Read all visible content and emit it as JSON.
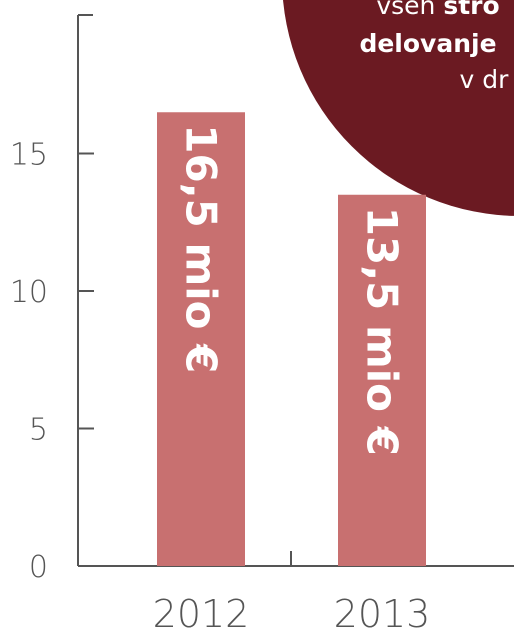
{
  "chart_data": {
    "type": "bar",
    "categories": [
      "2012",
      "2013"
    ],
    "values": [
      16.5,
      13.5
    ],
    "data_labels": [
      "16,5 mio €",
      "13,5 mio €"
    ],
    "ylim": [
      0,
      19
    ],
    "yticks": [
      0,
      5,
      10,
      15
    ],
    "bar_color": "#c87070",
    "axis_color": "#555555"
  },
  "callout": {
    "color": "#6b1a22",
    "line1_normal": "vseh ",
    "line1_bold": "stro",
    "line2_bold": "delovanje",
    "line3_normal": "v dr"
  }
}
